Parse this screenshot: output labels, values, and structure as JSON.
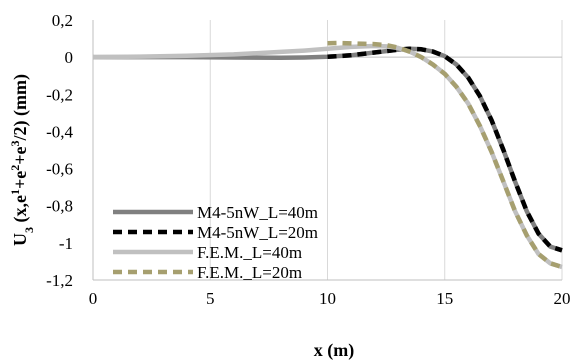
{
  "chart_data": {
    "type": "line",
    "xlabel": "x (m)",
    "ylabel_parts": {
      "U": "U",
      "sub3": "3",
      "open": " (x,e",
      "sup1": "1",
      "plus1": "+e",
      "sup2": "2",
      "plus2": "+e",
      "sup3": "3",
      "close": "/2) (mm)"
    },
    "xlim": [
      0,
      20
    ],
    "ylim": [
      -1.2,
      0.2
    ],
    "grid": "vertical",
    "legend_position": "bottom-left",
    "x_ticks": [
      {
        "value": 0,
        "label": "0"
      },
      {
        "value": 5,
        "label": "5"
      },
      {
        "value": 10,
        "label": "10"
      },
      {
        "value": 15,
        "label": "15"
      },
      {
        "value": 20,
        "label": "20"
      }
    ],
    "y_ticks": [
      {
        "value": 0.2,
        "label": "0,2"
      },
      {
        "value": 0,
        "label": "0"
      },
      {
        "value": -0.2,
        "label": "-0,2"
      },
      {
        "value": -0.4,
        "label": "-0,4"
      },
      {
        "value": -0.6,
        "label": "-0,6"
      },
      {
        "value": -0.8,
        "label": "-0,8"
      },
      {
        "value": -1.0,
        "label": "-1"
      },
      {
        "value": -1.2,
        "label": "-1,2"
      }
    ],
    "series": [
      {
        "name": "M4-5nW_L=40m",
        "color": "#808080",
        "dash": "solid",
        "x": [
          0,
          2,
          4,
          6,
          8,
          9,
          10,
          11,
          12,
          13,
          13.5,
          14,
          14.5,
          15,
          15.5,
          16,
          16.5,
          17,
          17.5,
          18,
          18.5,
          19,
          19.5,
          20
        ],
        "y": [
          0,
          0,
          0,
          -0.002,
          -0.003,
          -0.002,
          0.002,
          0.01,
          0.025,
          0.04,
          0.045,
          0.042,
          0.03,
          0.005,
          -0.04,
          -0.11,
          -0.21,
          -0.34,
          -0.5,
          -0.67,
          -0.83,
          -0.95,
          -1.02,
          -1.04
        ]
      },
      {
        "name": "M4-5nW_L=20m",
        "color": "#000000",
        "dash": "dashed",
        "x": [
          10,
          11,
          12,
          13,
          13.5,
          14,
          14.5,
          15,
          15.5,
          16,
          16.5,
          17,
          17.5,
          18,
          18.5,
          19,
          19.5,
          20
        ],
        "y": [
          0.002,
          0.01,
          0.025,
          0.04,
          0.045,
          0.042,
          0.03,
          0.005,
          -0.04,
          -0.11,
          -0.21,
          -0.34,
          -0.5,
          -0.67,
          -0.83,
          -0.95,
          -1.02,
          -1.04
        ]
      },
      {
        "name": "F.E.M._L=40m",
        "color": "#c0c0c0",
        "dash": "solid",
        "x": [
          0,
          2,
          4,
          6,
          8,
          9,
          10,
          11,
          12,
          12.5,
          13,
          13.5,
          14,
          14.5,
          15,
          15.5,
          16,
          16.5,
          17,
          17.5,
          18,
          18.5,
          19,
          19.5,
          20
        ],
        "y": [
          0,
          0.003,
          0.008,
          0.015,
          0.028,
          0.035,
          0.045,
          0.055,
          0.06,
          0.058,
          0.05,
          0.03,
          0.0,
          -0.04,
          -0.09,
          -0.16,
          -0.25,
          -0.37,
          -0.51,
          -0.67,
          -0.83,
          -0.96,
          -1.06,
          -1.11,
          -1.13
        ]
      },
      {
        "name": "F.E.M._L=20m",
        "color": "#a69f6f",
        "dash": "dashed",
        "x": [
          10,
          10.5,
          11,
          11.5,
          12,
          12.5,
          13,
          13.5,
          14,
          14.5,
          15,
          15.5,
          16,
          16.5,
          17,
          17.5,
          18,
          18.5,
          19,
          19.5,
          20
        ],
        "y": [
          0.075,
          0.076,
          0.074,
          0.072,
          0.07,
          0.065,
          0.052,
          0.03,
          0.0,
          -0.04,
          -0.09,
          -0.16,
          -0.25,
          -0.37,
          -0.51,
          -0.67,
          -0.83,
          -0.96,
          -1.06,
          -1.11,
          -1.13
        ]
      }
    ]
  }
}
